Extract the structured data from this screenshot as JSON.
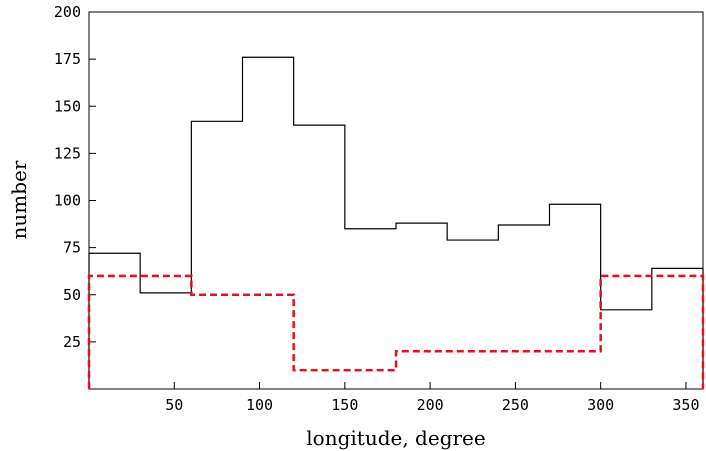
{
  "chart_data": {
    "type": "line",
    "step": true,
    "xlabel": "longitude, degree",
    "ylabel": "number",
    "xlim": [
      0,
      360
    ],
    "ylim": [
      0,
      200
    ],
    "xticks": [
      50,
      100,
      150,
      200,
      250,
      300,
      350
    ],
    "yticks": [
      25,
      50,
      75,
      100,
      125,
      150,
      175,
      200
    ],
    "grid": false,
    "series": [
      {
        "style": "solid",
        "color": "#000000",
        "bin_edges": [
          0,
          30,
          60,
          90,
          120,
          150,
          180,
          210,
          240,
          270,
          300,
          330,
          360
        ],
        "values": [
          72,
          51,
          142,
          176,
          140,
          85,
          88,
          79,
          87,
          98,
          42,
          64
        ]
      },
      {
        "style": "dashed",
        "color": "#e8101c",
        "bin_edges": [
          0,
          60,
          120,
          180,
          300,
          360
        ],
        "values": [
          60,
          50,
          10,
          20,
          60
        ]
      }
    ]
  }
}
